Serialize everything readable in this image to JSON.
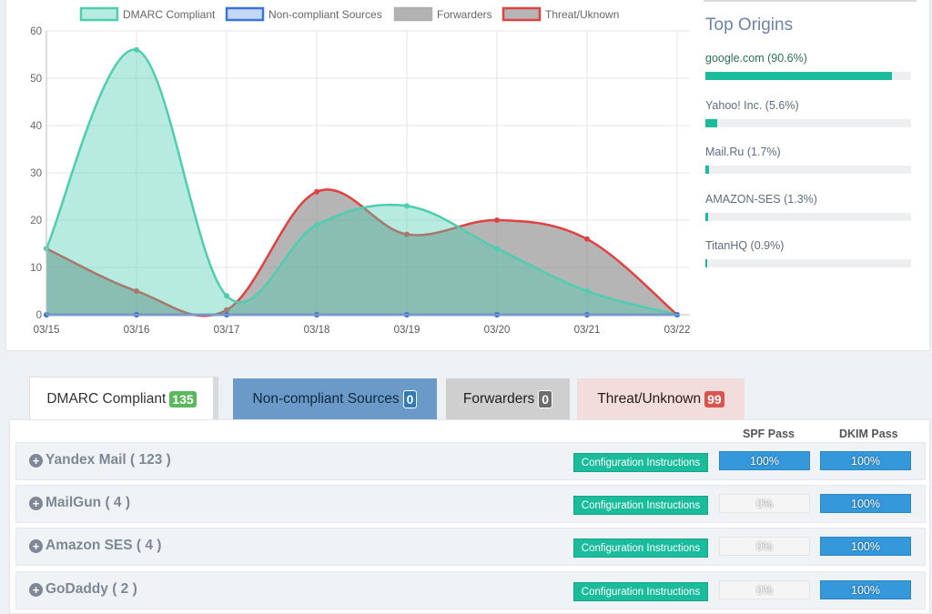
{
  "chart_data": {
    "type": "area",
    "x": [
      "03/15",
      "03/16",
      "03/17",
      "03/18",
      "03/19",
      "03/20",
      "03/21",
      "03/22"
    ],
    "ylim": [
      0,
      60
    ],
    "yticks": [
      0,
      10,
      20,
      30,
      40,
      50,
      60
    ],
    "grid": true,
    "legend_position": "top",
    "series": [
      {
        "name": "DMARC Compliant",
        "values": [
          14,
          56,
          4,
          19,
          23,
          14,
          5,
          0
        ],
        "stroke": "#4ecdb0",
        "fill": "rgba(78,205,176,0.4)"
      },
      {
        "name": "Non-compliant Sources",
        "values": [
          0,
          0,
          0,
          0,
          0,
          0,
          0,
          0
        ],
        "stroke": "#3a74d6",
        "fill": "rgba(157,190,240,0.6)"
      },
      {
        "name": "Forwarders",
        "values": [
          0,
          0,
          0,
          0,
          0,
          0,
          0,
          0
        ],
        "stroke": "#b0b0b0",
        "fill": "rgba(170,170,170,0.9)"
      },
      {
        "name": "Threat/Uknown",
        "values": [
          14,
          5,
          1,
          26,
          17,
          20,
          16,
          0
        ],
        "stroke": "#e04141",
        "fill": "rgba(120,120,120,0.55)"
      }
    ]
  },
  "origins": {
    "title": "Top Origins",
    "items": [
      {
        "label": "google.com (90.6%)",
        "percent": 90.6
      },
      {
        "label": "Yahoo! Inc. (5.6%)",
        "percent": 5.6
      },
      {
        "label": "Mail.Ru (1.7%)",
        "percent": 1.7
      },
      {
        "label": "AMAZON-SES (1.3%)",
        "percent": 1.3
      },
      {
        "label": "TitanHQ (0.9%)",
        "percent": 0.9
      }
    ]
  },
  "tabs": {
    "compliant": {
      "label": "DMARC Compliant",
      "count": "135"
    },
    "noncompliant": {
      "label": "Non-compliant Sources",
      "count": "0"
    },
    "forwarders": {
      "label": "Forwarders",
      "count": "0"
    },
    "threat": {
      "label": "Threat/Unknown",
      "count": "99"
    }
  },
  "table": {
    "spf_header": "SPF Pass",
    "dkim_header": "DKIM Pass",
    "config_label": "Configuration Instructions",
    "rows": [
      {
        "title": "Yandex Mail ( 123 )",
        "spf": "100%",
        "spf_value": 100,
        "dkim": "100%",
        "dkim_value": 100
      },
      {
        "title": "MailGun ( 4 )",
        "spf": "0%",
        "spf_value": 0,
        "dkim": "100%",
        "dkim_value": 100
      },
      {
        "title": "Amazon SES ( 4 )",
        "spf": "0%",
        "spf_value": 0,
        "dkim": "100%",
        "dkim_value": 100
      },
      {
        "title": "GoDaddy ( 2 )",
        "spf": "0%",
        "spf_value": 0,
        "dkim": "100%",
        "dkim_value": 100
      }
    ]
  }
}
